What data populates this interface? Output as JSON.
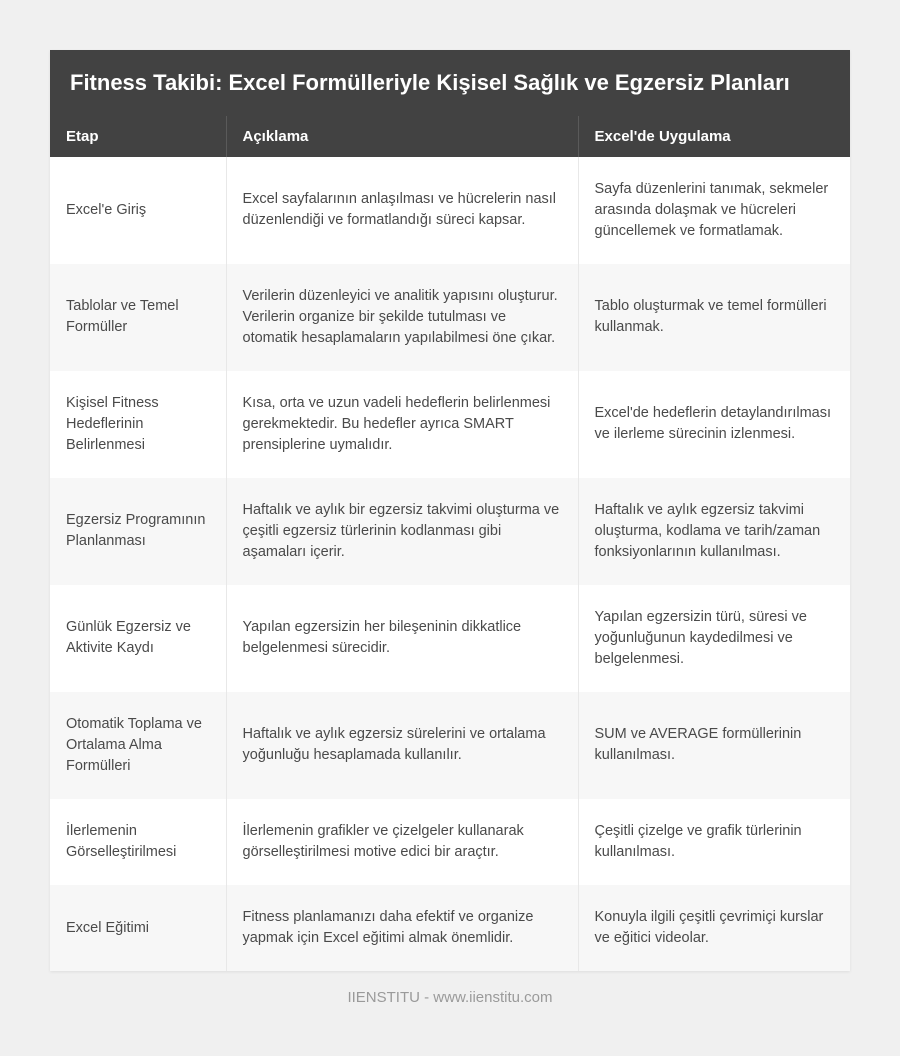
{
  "title": "Fitness Takibi: Excel Formülleriyle Kişisel Sağlık ve Egzersiz Planları",
  "columns": [
    "Etap",
    "Açıklama",
    "Excel'de Uygulama"
  ],
  "rows": [
    {
      "etap": "Excel'e Giriş",
      "aciklama": "Excel sayfalarının anlaşılması ve hücrelerin nasıl düzenlendiği ve formatlandığı süreci kapsar.",
      "uygulama": "Sayfa düzenlerini tanımak, sekmeler arasında dolaşmak ve hücreleri güncellemek ve formatlamak."
    },
    {
      "etap": "Tablolar ve Temel Formüller",
      "aciklama": "Verilerin düzenleyici ve analitik yapısını oluşturur. Verilerin organize bir şekilde tutulması ve otomatik hesaplamaların yapılabilmesi öne çıkar.",
      "uygulama": "Tablo oluşturmak ve temel formülleri kullanmak."
    },
    {
      "etap": "Kişisel Fitness Hedeflerinin Belirlenmesi",
      "aciklama": "Kısa, orta ve uzun vadeli hedeflerin belirlenmesi gerekmektedir. Bu hedefler ayrıca SMART prensiplerine uymalıdır.",
      "uygulama": "Excel'de hedeflerin detaylandırılması ve ilerleme sürecinin izlenmesi."
    },
    {
      "etap": "Egzersiz Programının Planlanması",
      "aciklama": "Haftalık ve aylık bir egzersiz takvimi oluşturma ve çeşitli egzersiz türlerinin kodlanması gibi aşamaları içerir.",
      "uygulama": "Haftalık ve aylık egzersiz takvimi oluşturma, kodlama ve tarih/zaman fonksiyonlarının kullanılması."
    },
    {
      "etap": "Günlük Egzersiz ve Aktivite Kaydı",
      "aciklama": "Yapılan egzersizin her bileşeninin dikkatlice belgelenmesi sürecidir.",
      "uygulama": "Yapılan egzersizin türü, süresi ve yoğunluğunun kaydedilmesi ve belgelenmesi."
    },
    {
      "etap": "Otomatik Toplama ve Ortalama Alma Formülleri",
      "aciklama": "Haftalık ve aylık egzersiz sürelerini ve ortalama yoğunluğu hesaplamada kullanılır.",
      "uygulama": "SUM ve AVERAGE formüllerinin kullanılması."
    },
    {
      "etap": "İlerlemenin Görselleştirilmesi",
      "aciklama": "İlerlemenin grafikler ve çizelgeler kullanarak görselleştirilmesi motive edici bir araçtır.",
      "uygulama": "Çeşitli çizelge ve grafik türlerinin kullanılması."
    },
    {
      "etap": "Excel Eğitimi",
      "aciklama": "Fitness planlamanızı daha efektif ve organize yapmak için Excel eğitimi almak önemlidir.",
      "uygulama": "Konuyla ilgili çeşitli çevrimiçi kurslar ve eğitici videolar."
    }
  ],
  "footer": "IIENSTITU - www.iienstitu.com",
  "colors": {
    "header_bg": "#424242",
    "header_text": "#ffffff",
    "row_odd_bg": "#ffffff",
    "row_even_bg": "#f7f7f7",
    "body_bg": "#f0f0f0",
    "cell_text": "#4a4a4a",
    "footer_text": "#9a9a9a",
    "cell_border": "#e8e8e8"
  },
  "column_widths_pct": [
    22,
    44,
    34
  ],
  "font_sizes": {
    "title": 22,
    "header": 15,
    "cell": 14.5,
    "footer": 15
  }
}
